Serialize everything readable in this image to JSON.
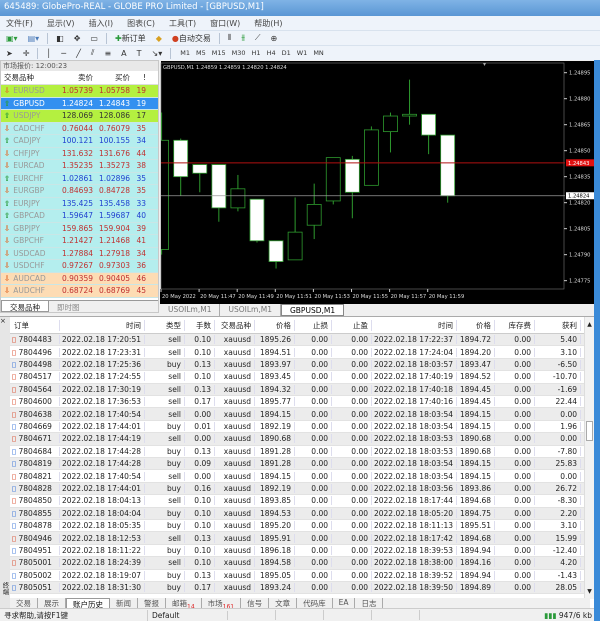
{
  "title": "645489: GlobePro-REAL - GLOBE PRO Limited - [GBPUSD,M1]",
  "menu": [
    "文件(F)",
    "显示(V)",
    "插入(I)",
    "图表(C)",
    "工具(T)",
    "窗口(W)",
    "帮助(H)"
  ],
  "toolbar": {
    "new_order": "新订单",
    "auto_trade": "自动交易",
    "timeframes": [
      "M1",
      "M5",
      "M15",
      "M30",
      "H1",
      "H4",
      "D1",
      "W1",
      "MN"
    ]
  },
  "market_watch": {
    "title": "市场报价: 12:00:23",
    "headers": [
      "交易品种",
      "卖价",
      "买价",
      "!"
    ],
    "rows": [
      [
        "EURUSD",
        "1.05739",
        "1.05758",
        "19",
        "down",
        "lime",
        "#c03030"
      ],
      [
        "GBPUSD",
        "1.24824",
        "1.24843",
        "19",
        "up",
        "sel",
        "#ffffff"
      ],
      [
        "USDJPY",
        "128.069",
        "128.086",
        "17",
        "up",
        "lime",
        "#333333"
      ],
      [
        "CADCHF",
        "0.76044",
        "0.76079",
        "35",
        "down",
        "cyan",
        "#c03030"
      ],
      [
        "CADJPY",
        "100.121",
        "100.155",
        "34",
        "up",
        "cyan",
        "#2040d0"
      ],
      [
        "CHFJPY",
        "131.632",
        "131.676",
        "44",
        "down",
        "cyan",
        "#c03030"
      ],
      [
        "EURCAD",
        "1.35235",
        "1.35273",
        "38",
        "down",
        "cyan",
        "#c03030"
      ],
      [
        "EURCHF",
        "1.02861",
        "1.02896",
        "35",
        "up",
        "cyan",
        "#2040d0"
      ],
      [
        "EURGBP",
        "0.84693",
        "0.84728",
        "35",
        "down",
        "cyan",
        "#c03030"
      ],
      [
        "EURJPY",
        "135.425",
        "135.458",
        "33",
        "up",
        "cyan",
        "#2040d0"
      ],
      [
        "GBPCAD",
        "1.59647",
        "1.59687",
        "40",
        "up",
        "cyan",
        "#2040d0"
      ],
      [
        "GBPJPY",
        "159.865",
        "159.904",
        "39",
        "down",
        "cyan",
        "#c03030"
      ],
      [
        "GBPCHF",
        "1.21427",
        "1.21468",
        "41",
        "down",
        "cyan",
        "#c03030"
      ],
      [
        "USDCAD",
        "1.27884",
        "1.27918",
        "34",
        "down",
        "cyan",
        "#c03030"
      ],
      [
        "USDCHF",
        "0.97267",
        "0.97303",
        "36",
        "down",
        "cyan",
        "#c03030"
      ],
      [
        "AUDCAD",
        "0.90359",
        "0.90405",
        "46",
        "down",
        "orange",
        "#c03030"
      ],
      [
        "AUDCHF",
        "0.68724",
        "0.68769",
        "45",
        "down",
        "orange",
        "#c03030"
      ]
    ],
    "tabs": [
      "交易品种",
      "即时图"
    ]
  },
  "colors": {
    "lime": "#b4f040",
    "sel": "#3390f0",
    "cyan": "#b4eeee",
    "orange": "#fddcb4",
    "up": "#2a9a3a",
    "down": "#e06a2a",
    "candle": "#2e9a2e",
    "ask_line": "#b01010",
    "bid_line": "#9a9a9a"
  },
  "chart": {
    "header": "GBPUSD,M1  1.24859 1.24859 1.24820 1.24824",
    "price_ticks": [
      "1.24895",
      "1.24880",
      "1.24865",
      "1.24850",
      "1.24835",
      "1.24820",
      "1.24805",
      "1.24790",
      "1.24775"
    ],
    "ask": "1.24843",
    "bid": "1.24824",
    "time_labels": [
      "20 May 2022",
      "20 May 11:47",
      "20 May 11:49",
      "20 May 11:51",
      "20 May 11:53",
      "20 May 11:55",
      "20 May 11:57",
      "20 May 11:59"
    ],
    "candles": [
      [
        1.24793,
        1.24872,
        1.2479,
        1.24856
      ],
      [
        1.24856,
        1.24857,
        1.24824,
        1.24835
      ],
      [
        1.24842,
        1.24842,
        1.24826,
        1.24837
      ],
      [
        1.24842,
        1.24842,
        1.24809,
        1.24817
      ],
      [
        1.24817,
        1.24836,
        1.24815,
        1.24828
      ],
      [
        1.24822,
        1.24822,
        1.24797,
        1.24798
      ],
      [
        1.24798,
        1.24798,
        1.24782,
        1.24786
      ],
      [
        1.24787,
        1.24823,
        1.24787,
        1.24803
      ],
      [
        1.24807,
        1.24831,
        1.24799,
        1.24819
      ],
      [
        1.24821,
        1.24846,
        1.24819,
        1.24846
      ],
      [
        1.24845,
        1.24847,
        1.24811,
        1.24826
      ],
      [
        1.2483,
        1.24864,
        1.2483,
        1.24862
      ],
      [
        1.24861,
        1.24872,
        1.24849,
        1.2487
      ],
      [
        1.2487,
        1.24891,
        1.24865,
        1.24871
      ],
      [
        1.24871,
        1.24871,
        1.24848,
        1.24859
      ],
      [
        1.24859,
        1.24859,
        1.2482,
        1.24824
      ]
    ],
    "tabs": [
      "USOILm,M1",
      "USOILm,M1",
      "GBPUSD,M1"
    ]
  },
  "terminal": {
    "strip": "终端",
    "headers": [
      "订单",
      "时间",
      "类型",
      "手数",
      "交易品种",
      "价格",
      "止损",
      "止盈",
      "时间",
      "价格",
      "库存费",
      "获利"
    ],
    "rows": [
      [
        "7804483",
        "2022.02.18 17:20:51",
        "sell",
        "0.10",
        "xauusd",
        "1895.26",
        "0.00",
        "0.00",
        "2022.02.18 17:22:37",
        "1894.72",
        "0.00",
        "5.40"
      ],
      [
        "7804496",
        "2022.02.18 17:23:31",
        "sell",
        "0.10",
        "xauusd",
        "1894.51",
        "0.00",
        "0.00",
        "2022.02.18 17:24:04",
        "1894.20",
        "0.00",
        "3.10"
      ],
      [
        "7804498",
        "2022.02.18 17:25:36",
        "buy",
        "0.13",
        "xauusd",
        "1893.97",
        "0.00",
        "0.00",
        "2022.02.18 18:03:57",
        "1893.47",
        "0.00",
        "-6.50"
      ],
      [
        "7804517",
        "2022.02.18 17:24:55",
        "sell",
        "0.10",
        "xauusd",
        "1893.45",
        "0.00",
        "0.00",
        "2022.02.18 17:40:19",
        "1894.52",
        "0.00",
        "-10.70"
      ],
      [
        "7804564",
        "2022.02.18 17:30:19",
        "sell",
        "0.13",
        "xauusd",
        "1894.32",
        "0.00",
        "0.00",
        "2022.02.18 17:40:18",
        "1894.45",
        "0.00",
        "-1.69"
      ],
      [
        "7804600",
        "2022.02.18 17:36:53",
        "sell",
        "0.17",
        "xauusd",
        "1895.77",
        "0.00",
        "0.00",
        "2022.02.18 17:40:16",
        "1894.45",
        "0.00",
        "22.44"
      ],
      [
        "7804638",
        "2022.02.18 17:40:54",
        "sell",
        "0.00",
        "xauusd",
        "1894.15",
        "0.00",
        "0.00",
        "2022.02.18 18:03:54",
        "1894.15",
        "0.00",
        "0.00"
      ],
      [
        "7804669",
        "2022.02.18 17:44:01",
        "buy",
        "0.01",
        "xauusd",
        "1892.19",
        "0.00",
        "0.00",
        "2022.02.18 18:03:54",
        "1894.15",
        "0.00",
        "1.96"
      ],
      [
        "7804671",
        "2022.02.18 17:44:19",
        "sell",
        "0.00",
        "xauusd",
        "1890.68",
        "0.00",
        "0.00",
        "2022.02.18 18:03:53",
        "1890.68",
        "0.00",
        "0.00"
      ],
      [
        "7804684",
        "2022.02.18 17:44:28",
        "buy",
        "0.13",
        "xauusd",
        "1891.28",
        "0.00",
        "0.00",
        "2022.02.18 18:03:53",
        "1890.68",
        "0.00",
        "-7.80"
      ],
      [
        "7804819",
        "2022.02.18 17:44:28",
        "buy",
        "0.09",
        "xauusd",
        "1891.28",
        "0.00",
        "0.00",
        "2022.02.18 18:03:54",
        "1894.15",
        "0.00",
        "25.83"
      ],
      [
        "7804821",
        "2022.02.18 17:40:54",
        "sell",
        "0.00",
        "xauusd",
        "1894.15",
        "0.00",
        "0.00",
        "2022.02.18 18:03:54",
        "1894.15",
        "0.00",
        "0.00"
      ],
      [
        "7804828",
        "2022.02.18 17:44:01",
        "buy",
        "0.16",
        "xauusd",
        "1892.19",
        "0.00",
        "0.00",
        "2022.02.18 18:03:56",
        "1893.86",
        "0.00",
        "26.72"
      ],
      [
        "7804850",
        "2022.02.18 18:04:13",
        "sell",
        "0.10",
        "xauusd",
        "1893.85",
        "0.00",
        "0.00",
        "2022.02.18 18:17:44",
        "1894.68",
        "0.00",
        "-8.30"
      ],
      [
        "7804855",
        "2022.02.18 18:04:04",
        "buy",
        "0.10",
        "xauusd",
        "1894.53",
        "0.00",
        "0.00",
        "2022.02.18 18:05:20",
        "1894.75",
        "0.00",
        "2.20"
      ],
      [
        "7804878",
        "2022.02.18 18:05:35",
        "buy",
        "0.10",
        "xauusd",
        "1895.20",
        "0.00",
        "0.00",
        "2022.02.18 18:11:13",
        "1895.51",
        "0.00",
        "3.10"
      ],
      [
        "7804946",
        "2022.02.18 18:12:53",
        "sell",
        "0.13",
        "xauusd",
        "1895.91",
        "0.00",
        "0.00",
        "2022.02.18 18:17:42",
        "1894.68",
        "0.00",
        "15.99"
      ],
      [
        "7804951",
        "2022.02.18 18:11:22",
        "buy",
        "0.10",
        "xauusd",
        "1896.18",
        "0.00",
        "0.00",
        "2022.02.18 18:39:53",
        "1894.94",
        "0.00",
        "-12.40"
      ],
      [
        "7805001",
        "2022.02.18 18:24:39",
        "sell",
        "0.10",
        "xauusd",
        "1894.58",
        "0.00",
        "0.00",
        "2022.02.18 18:38:00",
        "1894.16",
        "0.00",
        "4.20"
      ],
      [
        "7805002",
        "2022.02.18 18:19:07",
        "buy",
        "0.13",
        "xauusd",
        "1895.05",
        "0.00",
        "0.00",
        "2022.02.18 18:39:52",
        "1894.94",
        "0.00",
        "-1.43"
      ],
      [
        "7805051",
        "2022.02.18 18:31:30",
        "buy",
        "0.17",
        "xauusd",
        "1893.24",
        "0.00",
        "0.00",
        "2022.02.18 18:39:50",
        "1894.89",
        "0.00",
        "28.05"
      ]
    ],
    "tabs": [
      [
        "交易",
        ""
      ],
      [
        "展示",
        ""
      ],
      [
        "账户历史",
        ""
      ],
      [
        "新闻",
        ""
      ],
      [
        "警报",
        ""
      ],
      [
        "邮箱",
        "14"
      ],
      [
        "市场",
        "161"
      ],
      [
        "信号",
        ""
      ],
      [
        "文章",
        ""
      ],
      [
        "代码库",
        ""
      ],
      [
        "EA",
        ""
      ],
      [
        "日志",
        ""
      ]
    ],
    "active_tab": "账户历史"
  },
  "status": {
    "help": "寻求帮助,请按F1键",
    "profile": "Default",
    "traffic": "947/6 kb"
  }
}
